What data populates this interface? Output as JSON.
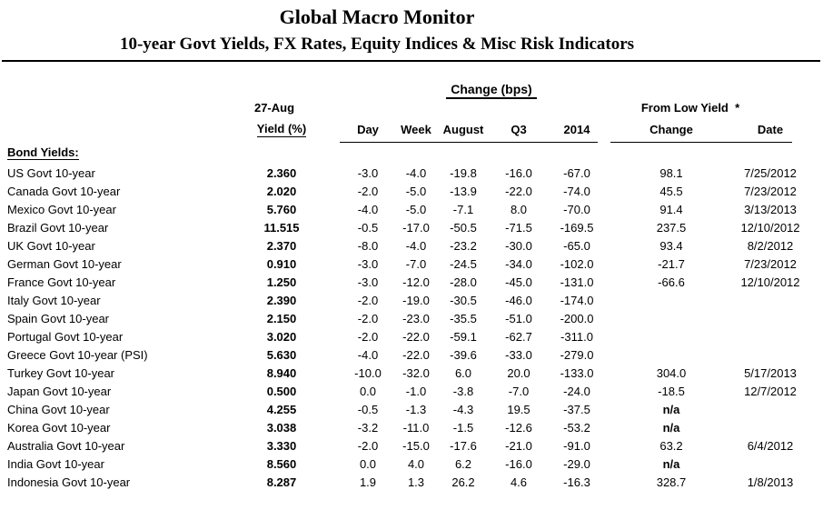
{
  "header": {
    "title": "Global Macro Monitor",
    "subtitle": "10-year Govt Yields, FX Rates, Equity Indices & Misc Risk Indicators"
  },
  "table": {
    "change_bps_header": "Change (bps)",
    "yield_header_line1": "27-Aug",
    "yield_header_line2": "Yield (%)",
    "from_low_header": "From Low Yield  *",
    "change_columns": [
      "Day",
      "Week",
      "August",
      "Q3",
      "2014"
    ],
    "low_columns": [
      "Change",
      "Date"
    ],
    "section_label": "Bond Yields:",
    "rows": [
      {
        "name": "US Govt 10-year",
        "yield": "2.360",
        "day": "-3.0",
        "week": "-4.0",
        "august": "-19.8",
        "q3": "-16.0",
        "y2014": "-67.0",
        "low_change": "98.1",
        "low_date": "7/25/2012"
      },
      {
        "name": "Canada Govt 10-year",
        "yield": "2.020",
        "day": "-2.0",
        "week": "-5.0",
        "august": "-13.9",
        "q3": "-22.0",
        "y2014": "-74.0",
        "low_change": "45.5",
        "low_date": "7/23/2012"
      },
      {
        "name": "Mexico Govt 10-year",
        "yield": "5.760",
        "day": "-4.0",
        "week": "-5.0",
        "august": "-7.1",
        "q3": "8.0",
        "y2014": "-70.0",
        "low_change": "91.4",
        "low_date": "3/13/2013"
      },
      {
        "name": "Brazil Govt 10-year",
        "yield": "11.515",
        "day": "-0.5",
        "week": "-17.0",
        "august": "-50.5",
        "q3": "-71.5",
        "y2014": "-169.5",
        "low_change": "237.5",
        "low_date": "12/10/2012"
      },
      {
        "name": "UK Govt 10-year",
        "yield": "2.370",
        "day": "-8.0",
        "week": "-4.0",
        "august": "-23.2",
        "q3": "-30.0",
        "y2014": "-65.0",
        "low_change": "93.4",
        "low_date": "8/2/2012"
      },
      {
        "name": "German Govt 10-year",
        "yield": "0.910",
        "day": "-3.0",
        "week": "-7.0",
        "august": "-24.5",
        "q3": "-34.0",
        "y2014": "-102.0",
        "low_change": "-21.7",
        "low_date": "7/23/2012"
      },
      {
        "name": "France Govt 10-year",
        "yield": "1.250",
        "day": "-3.0",
        "week": "-12.0",
        "august": "-28.0",
        "q3": "-45.0",
        "y2014": "-131.0",
        "low_change": "-66.6",
        "low_date": "12/10/2012"
      },
      {
        "name": "Italy Govt 10-year",
        "yield": "2.390",
        "day": "-2.0",
        "week": "-19.0",
        "august": "-30.5",
        "q3": "-46.0",
        "y2014": "-174.0",
        "low_change": "",
        "low_date": ""
      },
      {
        "name": "Spain Govt 10-year",
        "yield": "2.150",
        "day": "-2.0",
        "week": "-23.0",
        "august": "-35.5",
        "q3": "-51.0",
        "y2014": "-200.0",
        "low_change": "",
        "low_date": ""
      },
      {
        "name": "Portugal Govt 10-year",
        "yield": "3.020",
        "day": "-2.0",
        "week": "-22.0",
        "august": "-59.1",
        "q3": "-62.7",
        "y2014": "-311.0",
        "low_change": "",
        "low_date": ""
      },
      {
        "name": "Greece Govt 10-year (PSI)",
        "yield": "5.630",
        "day": "-4.0",
        "week": "-22.0",
        "august": "-39.6",
        "q3": "-33.0",
        "y2014": "-279.0",
        "low_change": "",
        "low_date": ""
      },
      {
        "name": "Turkey Govt 10-year",
        "yield": "8.940",
        "day": "-10.0",
        "week": "-32.0",
        "august": "6.0",
        "q3": "20.0",
        "y2014": "-133.0",
        "low_change": "304.0",
        "low_date": "5/17/2013"
      },
      {
        "name": "Japan Govt 10-year",
        "yield": "0.500",
        "day": "0.0",
        "week": "-1.0",
        "august": "-3.8",
        "q3": "-7.0",
        "y2014": "-24.0",
        "low_change": "-18.5",
        "low_date": "12/7/2012"
      },
      {
        "name": "China Govt 10-year",
        "yield": "4.255",
        "day": "-0.5",
        "week": "-1.3",
        "august": "-4.3",
        "q3": "19.5",
        "y2014": "-37.5",
        "low_change": "n/a",
        "low_date": ""
      },
      {
        "name": "Korea Govt 10-year",
        "yield": "3.038",
        "day": "-3.2",
        "week": "-11.0",
        "august": "-1.5",
        "q3": "-12.6",
        "y2014": "-53.2",
        "low_change": "n/a",
        "low_date": ""
      },
      {
        "name": "Australia Govt 10-year",
        "yield": "3.330",
        "day": "-2.0",
        "week": "-15.0",
        "august": "-17.6",
        "q3": "-21.0",
        "y2014": "-91.0",
        "low_change": "63.2",
        "low_date": "6/4/2012"
      },
      {
        "name": "India Govt 10-year",
        "yield": "8.560",
        "day": "0.0",
        "week": "4.0",
        "august": "6.2",
        "q3": "-16.0",
        "y2014": "-29.0",
        "low_change": "n/a",
        "low_date": ""
      },
      {
        "name": "Indonesia Govt 10-year",
        "yield": "8.287",
        "day": "1.9",
        "week": "1.3",
        "august": "26.2",
        "q3": "4.6",
        "y2014": "-16.3",
        "low_change": "328.7",
        "low_date": "1/8/2013"
      }
    ]
  }
}
